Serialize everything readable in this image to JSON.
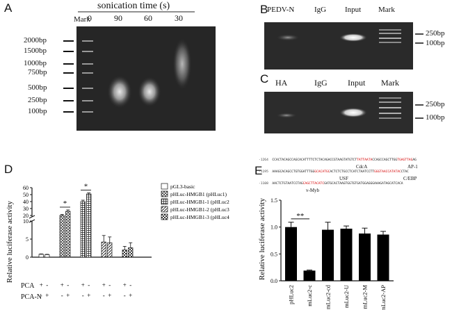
{
  "panels": {
    "A": {
      "letter": "A",
      "title": "sonication time (s)",
      "lane_labels": [
        "Mark",
        "0",
        "90",
        "60",
        "30"
      ],
      "marker_labels": [
        "2000bp",
        "1500bp",
        "1000bp",
        "750bp",
        "500bp",
        "250bp",
        "100bp"
      ]
    },
    "B": {
      "letter": "B",
      "lane_labels": [
        "PEDV-N",
        "IgG",
        "Input",
        "Mark"
      ],
      "marker_labels": [
        "250bp",
        "100bp"
      ]
    },
    "C": {
      "letter": "C",
      "lane_labels": [
        "HA",
        "IgG",
        "Input",
        "Mark"
      ],
      "marker_labels": [
        "250bp",
        "100bp"
      ]
    },
    "D": {
      "letter": "D",
      "significance": [
        "*",
        "*"
      ],
      "pca_label": "PCA",
      "pca_n_label": "PCA-N",
      "pca_row": [
        "+",
        "-",
        "+",
        "-",
        "+",
        "-",
        "+",
        "-",
        "+",
        "-"
      ],
      "pca_n_row": [
        "-",
        "+",
        "-",
        "+",
        "-",
        "+",
        "-",
        "+",
        "-",
        "+"
      ]
    },
    "E": {
      "letter": "E",
      "significance": "**",
      "seq_lines": [
        {
          "pos": "-1264",
          "pre": "CCACTACAGCCAGCACATTTTCTCTACAGACCGTAAGTATGTCT",
          "red1": "TATTAATA",
          "mid": "CCAGCCAGCTTGG",
          "red2": "TGAGTTAG",
          "post": "AG"
        },
        {
          "pos": "-1195",
          "pre": "AAAGCACAGCCTGTGGATTTGG",
          "red1": "GCACATGC",
          "mid": "ACTCTCTGCCTCATCTAATCCTT",
          "red2": "GGGTAACCATATAC",
          "post": "CTAC"
        },
        {
          "pos": "-1108",
          "pre": "AACTCTGTAATCCTAG",
          "red1": "CAGCTTACATC",
          "mid": "GATGCACTAAGTGGTGTGATGGAGGGAAAGATAGCATCACA",
          "red2": "",
          "post": ""
        }
      ],
      "seq_sites": [
        "CdcA",
        "AP-1",
        "USF",
        "C/EBP",
        "v-Myb"
      ]
    }
  },
  "chart_data": [
    {
      "type": "bar",
      "title": "",
      "xlabel": "",
      "ylabel": "Relative luciferase activity",
      "ylim": [
        0,
        60
      ],
      "y_break": [
        10,
        18
      ],
      "lower_ticks": [
        0,
        5,
        10
      ],
      "upper_ticks": [
        20,
        30,
        40,
        50,
        60
      ],
      "legend_position": "right",
      "series": [
        {
          "name": "pGL3-basic",
          "values": [
            0.8,
            0.7
          ],
          "errors": [
            0.1,
            0.1
          ],
          "pattern": "blank"
        },
        {
          "name": "pHLuc-HMGB1 (pHLuc1)",
          "values": [
            20,
            26
          ],
          "errors": [
            1.5,
            2
          ],
          "pattern": "cross"
        },
        {
          "name": "pHLuc-HMGB1-1 (pHLuc2)",
          "values": [
            40,
            51
          ],
          "errors": [
            2,
            1.5
          ],
          "pattern": "grid"
        },
        {
          "name": "pHLuc-HMGB1-2 (pHLuc3)",
          "values": [
            4.2,
            4.0
          ],
          "errors": [
            1.8,
            1.6
          ],
          "pattern": "diag"
        },
        {
          "name": "pHLuc-HMGB1-3 (pHLuc4)",
          "values": [
            2.0,
            2.6
          ],
          "errors": [
            1.0,
            1.4
          ],
          "pattern": "check"
        }
      ]
    },
    {
      "type": "bar",
      "title": "",
      "xlabel": "",
      "ylabel": "Relative luciferase activity",
      "ylim": [
        0,
        1.5
      ],
      "yticks": [
        0.0,
        0.5,
        1.0,
        1.5
      ],
      "categories": [
        "pHLuc2",
        "mLuc2-c",
        "mLuc2-cd",
        "mLuc2-U",
        "mLuc2-M",
        "mLuc2-AP"
      ],
      "values": [
        1.0,
        0.19,
        0.95,
        0.97,
        0.88,
        0.86
      ],
      "errors": [
        0.09,
        0.01,
        0.14,
        0.05,
        0.1,
        0.06
      ]
    }
  ]
}
